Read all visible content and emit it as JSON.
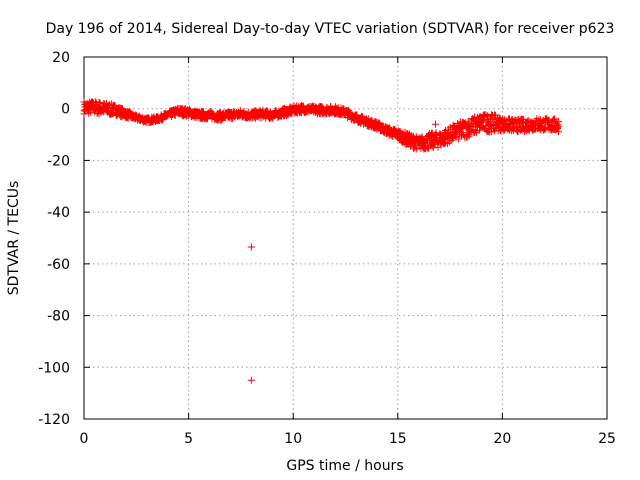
{
  "chart_data": {
    "type": "scatter",
    "title": "Day 196 of 2014, Sidereal Day-to-day VTEC variation (SDTVAR) for receiver p623",
    "xlabel": "GPS time / hours",
    "ylabel": "SDTVAR / TECUs",
    "xlim": [
      0,
      25
    ],
    "ylim": [
      -120,
      20
    ],
    "xticks": [
      0,
      5,
      10,
      15,
      20,
      25
    ],
    "yticks": [
      20,
      0,
      -20,
      -40,
      -60,
      -80,
      -100,
      -120
    ],
    "grid": true,
    "marker": "+",
    "color": "#ff0000",
    "band": {
      "description": "dense cloud of points, approximate center and half-width",
      "x": [
        0.0,
        0.5,
        1.0,
        1.5,
        2.0,
        2.5,
        3.0,
        3.5,
        4.0,
        4.5,
        5.0,
        5.5,
        6.0,
        6.5,
        7.0,
        7.5,
        8.0,
        8.5,
        9.0,
        9.5,
        10.0,
        10.5,
        11.0,
        11.5,
        12.0,
        12.5,
        13.0,
        13.5,
        14.0,
        14.5,
        15.0,
        15.5,
        16.0,
        16.5,
        17.0,
        17.5,
        18.0,
        18.5,
        19.0,
        19.5,
        20.0,
        20.5,
        21.0,
        21.5,
        22.0,
        22.7
      ],
      "center": [
        0.5,
        0.5,
        0.0,
        -0.5,
        -2.0,
        -3.5,
        -4.5,
        -4.0,
        -2.5,
        -1.0,
        -1.5,
        -2.5,
        -2.5,
        -3.0,
        -2.5,
        -2.0,
        -2.5,
        -2.0,
        -2.5,
        -1.5,
        -0.5,
        0.0,
        -0.5,
        -0.5,
        -0.5,
        -1.5,
        -3.5,
        -5.0,
        -6.5,
        -8.5,
        -10.0,
        -12.0,
        -13.5,
        -12.5,
        -12.0,
        -10.0,
        -8.5,
        -7.0,
        -5.5,
        -5.5,
        -6.0,
        -6.5,
        -6.5,
        -6.0,
        -6.0,
        -6.5
      ],
      "halfwidth": [
        2.5,
        2.5,
        2.5,
        2.0,
        1.5,
        1.0,
        1.0,
        1.0,
        1.2,
        1.5,
        1.5,
        1.5,
        1.5,
        1.5,
        1.5,
        1.5,
        1.5,
        1.5,
        1.5,
        1.5,
        1.5,
        1.5,
        1.5,
        1.5,
        1.5,
        1.5,
        1.5,
        1.5,
        1.5,
        1.5,
        2.0,
        2.5,
        2.5,
        3.0,
        3.0,
        3.0,
        3.5,
        3.5,
        3.5,
        3.5,
        2.5,
        2.5,
        2.5,
        2.5,
        2.5,
        2.5
      ]
    },
    "outliers": [
      {
        "x": 8.0,
        "y": -53.5
      },
      {
        "x": 8.0,
        "y": -105.0
      },
      {
        "x": 16.8,
        "y": -6.0
      }
    ]
  }
}
